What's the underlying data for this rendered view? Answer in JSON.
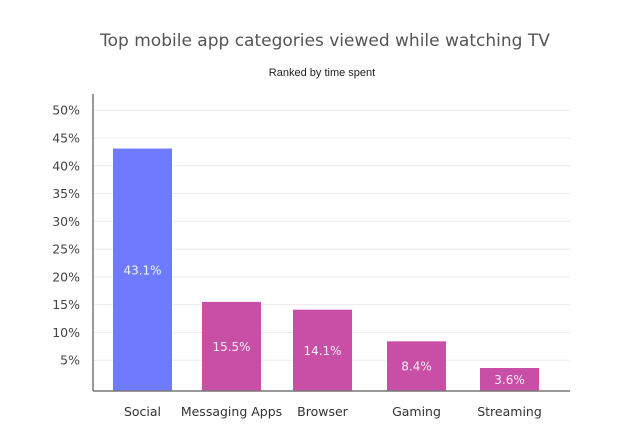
{
  "chart_data": {
    "type": "bar",
    "title": "Top mobile app categories viewed while watching TV",
    "subtitle": "Ranked by time spent",
    "xlabel": "",
    "ylabel": "",
    "categories": [
      "Social",
      "Messaging Apps",
      "Browser",
      "Gaming",
      "Streaming"
    ],
    "values": [
      43.1,
      15.5,
      14.1,
      8.4,
      3.6
    ],
    "data_labels": [
      "43.1%",
      "15.5%",
      "14.1%",
      "8.4%",
      "3.6%"
    ],
    "bar_colors": [
      "#6f7bff",
      "#c94ea6",
      "#c94ea6",
      "#c94ea6",
      "#c94ea6"
    ],
    "ylim": [
      0,
      50
    ],
    "yticks": [
      5,
      10,
      15,
      20,
      25,
      30,
      35,
      40,
      45,
      50
    ],
    "ytick_labels": [
      "5%",
      "10%",
      "15%",
      "20%",
      "25%",
      "30%",
      "35%",
      "40%",
      "45%",
      "50%"
    ],
    "grid": true,
    "legend": "none"
  }
}
